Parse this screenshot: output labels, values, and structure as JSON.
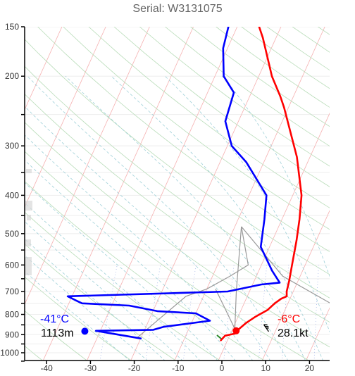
{
  "title": "Serial: W3131075",
  "chart_data": {
    "type": "skew-t",
    "title": "Serial: W3131075",
    "xlabel": "",
    "ylabel": "",
    "xlim": [
      -45,
      25
    ],
    "ylim": [
      1050,
      150
    ],
    "x_scale": "skewed temperature (°C)",
    "y_scale": "log pressure (hPa)",
    "x_ticks": [
      "-40",
      "-30",
      "-20",
      "-10",
      "0",
      "10",
      "20"
    ],
    "y_ticks": [
      "150",
      "200",
      "300",
      "400",
      "500",
      "600",
      "700",
      "800",
      "900",
      "1000"
    ],
    "series": [
      {
        "color": "#ff0000",
        "points": [
          [
            -1.5,
            930
          ],
          [
            -1.0,
            905
          ],
          [
            1.0,
            895
          ],
          [
            1.5,
            870
          ],
          [
            2.5,
            840
          ],
          [
            4.0,
            810
          ],
          [
            6.0,
            780
          ],
          [
            7.0,
            750
          ],
          [
            8.0,
            730
          ],
          [
            9.0,
            720
          ],
          [
            8.5,
            700
          ],
          [
            8.0,
            660
          ],
          [
            7.0,
            600
          ],
          [
            5.5,
            520
          ],
          [
            4.0,
            460
          ],
          [
            2.0,
            400
          ],
          [
            -3.0,
            320
          ],
          [
            -11.0,
            240
          ],
          [
            -13.0,
            225
          ],
          [
            -17.0,
            200
          ],
          [
            -23.0,
            160
          ],
          [
            -25.0,
            150
          ]
        ]
      },
      {
        "color": "#0000ff",
        "points": [
          [
            -20.0,
            920
          ],
          [
            -31.0,
            880
          ],
          [
            -18.0,
            875
          ],
          [
            -16.0,
            860
          ],
          [
            -6.0,
            830
          ],
          [
            -10.0,
            795
          ],
          [
            -19.0,
            785
          ],
          [
            -26.0,
            760
          ],
          [
            -37.0,
            750
          ],
          [
            -39.0,
            735
          ],
          [
            -41.0,
            720
          ],
          [
            -5.0,
            700
          ],
          [
            2.0,
            672
          ],
          [
            6.0,
            665
          ],
          [
            3.0,
            620
          ],
          [
            -2.0,
            540
          ],
          [
            -4.0,
            460
          ],
          [
            -6.0,
            400
          ],
          [
            -14.0,
            330
          ],
          [
            -19.0,
            300
          ],
          [
            -23.0,
            260
          ],
          [
            -24.0,
            220
          ],
          [
            -28.0,
            200
          ],
          [
            -31.0,
            170
          ],
          [
            -32.0,
            150
          ]
        ]
      }
    ],
    "lines": [
      {
        "color": "#999999",
        "points": [
          [
            -21.0,
            920
          ],
          [
            -14.0,
            720
          ],
          [
            -10.0,
            690
          ],
          [
            -6.0,
            640
          ],
          [
            -3.0,
            600
          ],
          [
            -8.5,
            480
          ]
        ]
      },
      {
        "color": "#999999",
        "points": [
          [
            -8.5,
            480
          ],
          [
            -3.0,
            700
          ],
          [
            0.5,
            870
          ]
        ]
      },
      {
        "color": "#999999",
        "points": [
          [
            -8.5,
            480
          ],
          [
            6.0,
            640
          ],
          [
            22.0,
            770
          ]
        ]
      },
      {
        "color": "#999999",
        "points": [
          [
            0.5,
            870
          ],
          [
            -8.0,
            690
          ]
        ]
      }
    ],
    "markers": [
      {
        "color": "#0000ff",
        "temp": -33.5,
        "pressure": 882
      },
      {
        "color": "#ff0000",
        "temp": 1.0,
        "pressure": 880
      }
    ],
    "labels": {
      "left_temp": "-41°C",
      "left_height": "1113m",
      "right_temp": "-6°C",
      "right_wind": "28.1kt"
    }
  }
}
